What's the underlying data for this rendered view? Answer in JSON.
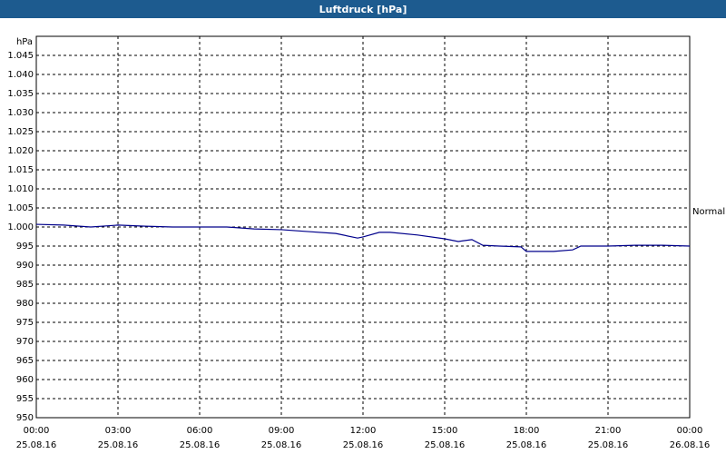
{
  "chart_data": {
    "type": "line",
    "title": "Luftdruck [hPa]",
    "y_label": "hPa",
    "x": [
      0,
      1,
      2,
      3,
      4,
      5,
      6,
      7,
      8,
      9,
      10,
      11,
      11.8,
      12,
      12.6,
      13,
      14,
      15,
      15.5,
      16,
      16.4,
      17,
      17.8,
      18,
      19,
      19.7,
      20,
      21,
      22,
      23,
      24
    ],
    "series": [
      {
        "name": "Luftdruck",
        "color": "#00008b",
        "values": [
          1000.7,
          1000.5,
          1000,
          1000.5,
          1000.2,
          1000,
          1000,
          1000,
          999.5,
          999.3,
          998.8,
          998.3,
          997.1,
          997.4,
          998.6,
          998.6,
          997.9,
          996.9,
          996.2,
          996.7,
          995.2,
          995,
          994.8,
          993.6,
          993.6,
          994,
          995,
          995,
          995.2,
          995.2,
          995
        ]
      }
    ],
    "xlim": [
      0,
      24
    ],
    "xticks": [
      {
        "value": 0,
        "label": "00:00",
        "sublabel": "25.08.16"
      },
      {
        "value": 3,
        "label": "03:00",
        "sublabel": "25.08.16"
      },
      {
        "value": 6,
        "label": "06:00",
        "sublabel": "25.08.16"
      },
      {
        "value": 9,
        "label": "09:00",
        "sublabel": "25.08.16"
      },
      {
        "value": 12,
        "label": "12:00",
        "sublabel": "25.08.16"
      },
      {
        "value": 15,
        "label": "15:00",
        "sublabel": "25.08.16"
      },
      {
        "value": 18,
        "label": "18:00",
        "sublabel": "25.08.16"
      },
      {
        "value": 21,
        "label": "21:00",
        "sublabel": "25.08.16"
      },
      {
        "value": 24,
        "label": "00:00",
        "sublabel": "26.08.16"
      }
    ],
    "ylim": [
      950,
      1050
    ],
    "yticks": [
      950,
      955,
      960,
      965,
      970,
      975,
      980,
      985,
      990,
      995,
      {
        "value": 1000,
        "label": "1.000"
      },
      {
        "value": 1005,
        "label": "1.005"
      },
      {
        "value": 1010,
        "label": "1.010"
      },
      {
        "value": 1015,
        "label": "1.015"
      },
      {
        "value": 1020,
        "label": "1.020"
      },
      {
        "value": 1025,
        "label": "1.025"
      },
      {
        "value": 1030,
        "label": "1.030"
      },
      {
        "value": 1035,
        "label": "1.035"
      },
      {
        "value": 1040,
        "label": "1.040"
      },
      {
        "value": 1045,
        "label": "1.045"
      }
    ],
    "grid": true,
    "annotations": [
      {
        "text": "Normal",
        "value": 1004
      }
    ]
  }
}
